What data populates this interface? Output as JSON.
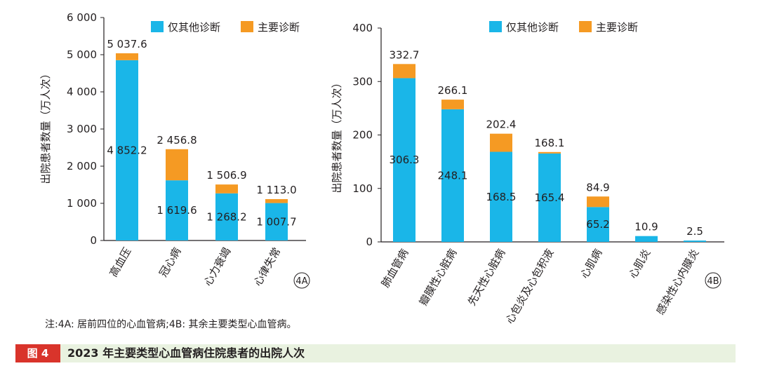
{
  "note": "注:4A: 居前四位的心血管病;4B: 其余主要类型心血管病。",
  "figure": {
    "label": "图 4",
    "title": "2023 年主要类型心血管病住院患者的出院人次"
  },
  "legend": {
    "other": "仅其他诊断",
    "main": "主要诊断"
  },
  "colors": {
    "other": "#1ab6e8",
    "main": "#f59a23",
    "axis": "#231f20"
  },
  "chart_data": [
    {
      "type": "bar",
      "stacked": true,
      "panel_label": "4A",
      "ylabel": "出院患者数量（万人次）",
      "ylim": [
        0,
        6000
      ],
      "yticks": [
        0,
        1000,
        2000,
        3000,
        4000,
        5000,
        6000
      ],
      "ytick_labels": [
        "0",
        "1 000",
        "2 000",
        "3 000",
        "4 000",
        "5 000",
        "6 000"
      ],
      "categories": [
        "高血压",
        "冠心病",
        "心力衰竭",
        "心律失常"
      ],
      "series": [
        {
          "name": "仅其他诊断",
          "values": [
            4852.2,
            1619.6,
            1268.2,
            1007.7
          ]
        },
        {
          "name": "主要诊断",
          "values": [
            185.4,
            837.2,
            238.7,
            105.3
          ]
        }
      ],
      "inner_labels": [
        "4 852.2",
        "1 619.6",
        "1 268.2",
        "1 007.7"
      ],
      "total_labels": [
        "5 037.6",
        "2 456.8",
        "1 506.9",
        "1 113.0"
      ],
      "legend_position": "top-right"
    },
    {
      "type": "bar",
      "stacked": true,
      "panel_label": "4B",
      "ylabel": "出院患者数量（万人次）",
      "ylim": [
        0,
        400
      ],
      "yticks": [
        0,
        100,
        200,
        300,
        400
      ],
      "ytick_labels": [
        "0",
        "100",
        "200",
        "300",
        "400"
      ],
      "categories": [
        "肺血管病",
        "瓣膜性心脏病",
        "先天性心脏病",
        "心包炎及心包积液",
        "心肌病",
        "心肌炎",
        "感染性心内膜炎"
      ],
      "series": [
        {
          "name": "仅其他诊断",
          "values": [
            306.3,
            248.1,
            168.5,
            165.4,
            65.2,
            10.9,
            2.5
          ]
        },
        {
          "name": "主要诊断",
          "values": [
            26.4,
            18.0,
            33.9,
            2.7,
            19.7,
            0,
            0
          ]
        }
      ],
      "inner_labels": [
        "306.3",
        "248.1",
        "168.5",
        "165.4",
        "65.2",
        "",
        ""
      ],
      "total_labels": [
        "332.7",
        "266.1",
        "202.4",
        "168.1",
        "84.9",
        "10.9",
        "2.5"
      ],
      "legend_position": "top-right"
    }
  ]
}
